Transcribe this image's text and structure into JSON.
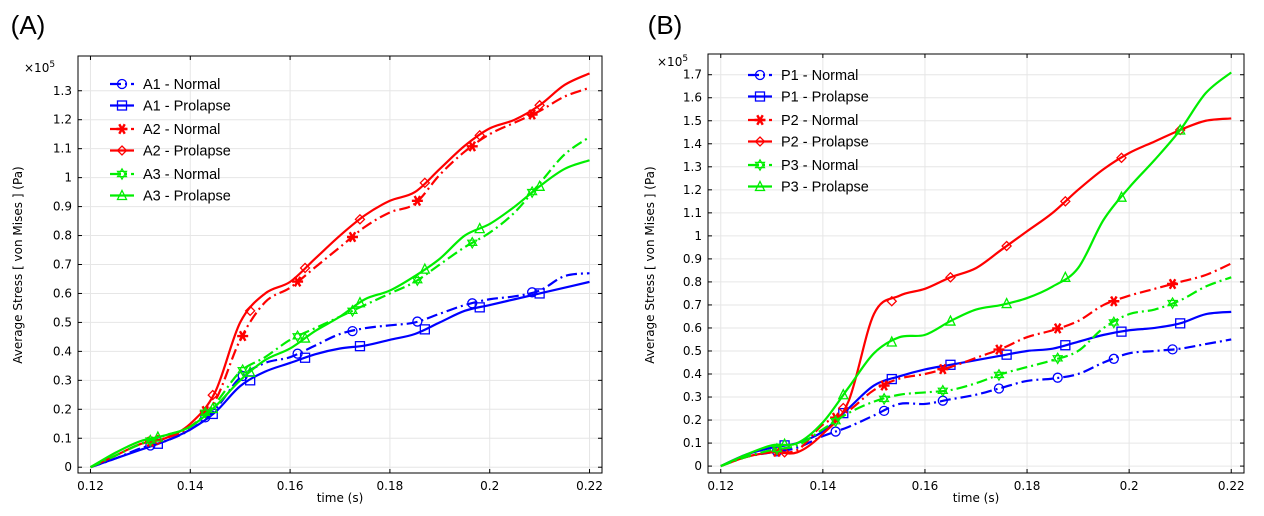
{
  "chart_data": [
    {
      "type": "line",
      "panel_label": "(A)",
      "xlabel": "time (s)",
      "ylabel": "Average Stress [ von Mises ] (Pa)",
      "y_multiplier": "×10",
      "y_exponent": "5",
      "xlim": [
        0.1175,
        0.2225
      ],
      "ylim": [
        -0.02,
        1.42
      ],
      "xticks": [
        0.12,
        0.14,
        0.16,
        0.18,
        0.2,
        0.22
      ],
      "xtick_labels": [
        "0.12",
        "0.14",
        "0.16",
        "0.18",
        "0.2",
        "0.22"
      ],
      "yticks": [
        0,
        0.1,
        0.2,
        0.3,
        0.4,
        0.5,
        0.6,
        0.7,
        0.8,
        0.9,
        1.0,
        1.1,
        1.2,
        1.3
      ],
      "ytick_labels": [
        "0",
        "0.1",
        "0.2",
        "0.3",
        "0.4",
        "0.5",
        "0.6",
        "0.7",
        "0.8",
        "0.9",
        "1",
        "1.1",
        "1.2",
        "1.3"
      ],
      "grid": true,
      "legend_position": "top-left",
      "series": [
        {
          "name": "A1 - Normal",
          "color": "#0000ff",
          "dash": "dashdot",
          "marker": "circle",
          "x": [
            0.12,
            0.125,
            0.13,
            0.135,
            0.14,
            0.145,
            0.15,
            0.155,
            0.16,
            0.165,
            0.17,
            0.175,
            0.18,
            0.185,
            0.19,
            0.195,
            0.2,
            0.205,
            0.21,
            0.215,
            0.22
          ],
          "y": [
            0,
            0.03,
            0.065,
            0.09,
            0.13,
            0.2,
            0.31,
            0.36,
            0.38,
            0.42,
            0.46,
            0.48,
            0.49,
            0.5,
            0.53,
            0.56,
            0.58,
            0.59,
            0.61,
            0.66,
            0.67
          ],
          "marker_x": [
            0.132,
            0.143,
            0.1505,
            0.1615,
            0.1725,
            0.1855,
            0.1965,
            0.2085
          ]
        },
        {
          "name": "A1 - Prolapse",
          "color": "#0000ff",
          "dash": "solid",
          "marker": "square",
          "x": [
            0.12,
            0.125,
            0.13,
            0.135,
            0.14,
            0.145,
            0.15,
            0.155,
            0.16,
            0.165,
            0.17,
            0.175,
            0.18,
            0.185,
            0.19,
            0.195,
            0.2,
            0.205,
            0.21,
            0.215,
            0.22
          ],
          "y": [
            0,
            0.03,
            0.06,
            0.09,
            0.13,
            0.19,
            0.28,
            0.33,
            0.36,
            0.39,
            0.41,
            0.42,
            0.44,
            0.46,
            0.5,
            0.54,
            0.56,
            0.58,
            0.6,
            0.62,
            0.64
          ]
        },
        {
          "name": "A2 - Normal",
          "color": "#ff0000",
          "dash": "dashdot",
          "marker": "asterisk",
          "x": [
            0.12,
            0.125,
            0.13,
            0.135,
            0.14,
            0.145,
            0.15,
            0.155,
            0.16,
            0.165,
            0.17,
            0.175,
            0.18,
            0.185,
            0.19,
            0.195,
            0.2,
            0.205,
            0.21,
            0.215,
            0.22
          ],
          "y": [
            0,
            0.04,
            0.08,
            0.1,
            0.14,
            0.23,
            0.44,
            0.57,
            0.62,
            0.69,
            0.76,
            0.83,
            0.88,
            0.91,
            1.01,
            1.09,
            1.15,
            1.19,
            1.23,
            1.28,
            1.31
          ]
        },
        {
          "name": "A2 - Prolapse",
          "color": "#ff0000",
          "dash": "solid",
          "marker": "diamond",
          "x": [
            0.12,
            0.125,
            0.13,
            0.135,
            0.14,
            0.145,
            0.15,
            0.155,
            0.16,
            0.165,
            0.17,
            0.175,
            0.18,
            0.185,
            0.19,
            0.195,
            0.2,
            0.205,
            0.21,
            0.215,
            0.22
          ],
          "y": [
            0,
            0.04,
            0.08,
            0.1,
            0.15,
            0.26,
            0.5,
            0.6,
            0.64,
            0.72,
            0.8,
            0.87,
            0.92,
            0.95,
            1.03,
            1.11,
            1.17,
            1.2,
            1.25,
            1.32,
            1.36
          ]
        },
        {
          "name": "A3 - Normal",
          "color": "#00ee00",
          "dash": "dashdot",
          "marker": "hexagram",
          "x": [
            0.12,
            0.125,
            0.13,
            0.135,
            0.14,
            0.145,
            0.15,
            0.155,
            0.16,
            0.165,
            0.17,
            0.175,
            0.18,
            0.185,
            0.19,
            0.195,
            0.2,
            0.205,
            0.21,
            0.215,
            0.22
          ],
          "y": [
            0,
            0.04,
            0.08,
            0.11,
            0.14,
            0.22,
            0.33,
            0.38,
            0.44,
            0.48,
            0.52,
            0.56,
            0.6,
            0.64,
            0.7,
            0.76,
            0.81,
            0.88,
            0.98,
            1.08,
            1.14
          ]
        },
        {
          "name": "A3 - Prolapse",
          "color": "#00ee00",
          "dash": "solid",
          "marker": "triangle",
          "x": [
            0.12,
            0.125,
            0.13,
            0.135,
            0.14,
            0.145,
            0.15,
            0.155,
            0.16,
            0.165,
            0.17,
            0.175,
            0.18,
            0.185,
            0.19,
            0.195,
            0.2,
            0.205,
            0.21,
            0.215,
            0.22
          ],
          "y": [
            0,
            0.05,
            0.09,
            0.11,
            0.14,
            0.21,
            0.3,
            0.37,
            0.41,
            0.47,
            0.52,
            0.58,
            0.61,
            0.66,
            0.72,
            0.8,
            0.84,
            0.9,
            0.97,
            1.03,
            1.06
          ]
        }
      ]
    },
    {
      "type": "line",
      "panel_label": "(B)",
      "xlabel": "time (s)",
      "ylabel": "Average Stress [ von Mises ] (Pa)",
      "y_multiplier": "×10",
      "y_exponent": "5",
      "xlim": [
        0.1175,
        0.2225
      ],
      "ylim": [
        -0.03,
        1.79
      ],
      "xticks": [
        0.12,
        0.14,
        0.16,
        0.18,
        0.2,
        0.22
      ],
      "xtick_labels": [
        "0.12",
        "0.14",
        "0.16",
        "0.18",
        "0.2",
        "0.22"
      ],
      "yticks": [
        0,
        0.1,
        0.2,
        0.3,
        0.4,
        0.5,
        0.6,
        0.7,
        0.8,
        0.9,
        1.0,
        1.1,
        1.2,
        1.3,
        1.4,
        1.5,
        1.6,
        1.7
      ],
      "ytick_labels": [
        "0",
        "0.1",
        "0.2",
        "0.3",
        "0.4",
        "0.5",
        "0.6",
        "0.7",
        "0.8",
        "0.9",
        "1",
        "1.1",
        "1.2",
        "1.3",
        "1.4",
        "1.5",
        "1.6",
        "1.7"
      ],
      "grid": true,
      "legend_position": "top-left",
      "series": [
        {
          "name": "P1 - Normal",
          "color": "#0000ff",
          "dash": "dashdot",
          "marker": "circle",
          "x": [
            0.12,
            0.125,
            0.13,
            0.135,
            0.14,
            0.145,
            0.15,
            0.155,
            0.16,
            0.165,
            0.17,
            0.175,
            0.18,
            0.185,
            0.19,
            0.195,
            0.2,
            0.205,
            0.21,
            0.215,
            0.22
          ],
          "y": [
            0,
            0.04,
            0.06,
            0.08,
            0.13,
            0.17,
            0.22,
            0.27,
            0.27,
            0.29,
            0.31,
            0.34,
            0.37,
            0.38,
            0.4,
            0.45,
            0.49,
            0.5,
            0.51,
            0.53,
            0.55
          ],
          "marker_x": [
            0.131,
            0.1425,
            0.152,
            0.1635,
            0.1745,
            0.186,
            0.197,
            0.2085
          ]
        },
        {
          "name": "P1 - Prolapse",
          "color": "#0000ff",
          "dash": "solid",
          "marker": "square",
          "x": [
            0.12,
            0.125,
            0.13,
            0.135,
            0.14,
            0.145,
            0.15,
            0.155,
            0.16,
            0.165,
            0.17,
            0.175,
            0.18,
            0.185,
            0.19,
            0.195,
            0.2,
            0.205,
            0.21,
            0.215,
            0.22
          ],
          "y": [
            0,
            0.05,
            0.08,
            0.1,
            0.15,
            0.25,
            0.35,
            0.39,
            0.42,
            0.44,
            0.46,
            0.48,
            0.5,
            0.51,
            0.54,
            0.57,
            0.59,
            0.6,
            0.62,
            0.66,
            0.67
          ]
        },
        {
          "name": "P2 - Normal",
          "color": "#ff0000",
          "dash": "dashdot",
          "marker": "asterisk",
          "x": [
            0.12,
            0.125,
            0.13,
            0.135,
            0.14,
            0.145,
            0.15,
            0.155,
            0.16,
            0.165,
            0.17,
            0.175,
            0.18,
            0.185,
            0.19,
            0.195,
            0.2,
            0.205,
            0.21,
            0.215,
            0.22
          ],
          "y": [
            0,
            0.04,
            0.06,
            0.07,
            0.18,
            0.24,
            0.33,
            0.38,
            0.4,
            0.43,
            0.47,
            0.51,
            0.56,
            0.59,
            0.63,
            0.7,
            0.74,
            0.77,
            0.8,
            0.83,
            0.88
          ]
        },
        {
          "name": "P2 - Prolapse",
          "color": "#ff0000",
          "dash": "solid",
          "marker": "diamond",
          "x": [
            0.12,
            0.125,
            0.13,
            0.135,
            0.14,
            0.145,
            0.15,
            0.155,
            0.16,
            0.165,
            0.17,
            0.175,
            0.18,
            0.185,
            0.19,
            0.195,
            0.2,
            0.205,
            0.21,
            0.215,
            0.22
          ],
          "y": [
            0,
            0.04,
            0.06,
            0.06,
            0.14,
            0.28,
            0.66,
            0.74,
            0.77,
            0.82,
            0.86,
            0.94,
            1.02,
            1.1,
            1.2,
            1.29,
            1.36,
            1.41,
            1.46,
            1.5,
            1.51
          ]
        },
        {
          "name": "P3 - Normal",
          "color": "#00ee00",
          "dash": "dashdot",
          "marker": "hexagram",
          "x": [
            0.12,
            0.125,
            0.13,
            0.135,
            0.14,
            0.145,
            0.15,
            0.155,
            0.16,
            0.165,
            0.17,
            0.175,
            0.18,
            0.185,
            0.19,
            0.195,
            0.2,
            0.205,
            0.21,
            0.215,
            0.22
          ],
          "y": [
            0,
            0.04,
            0.07,
            0.09,
            0.16,
            0.23,
            0.28,
            0.31,
            0.32,
            0.33,
            0.36,
            0.4,
            0.43,
            0.46,
            0.5,
            0.6,
            0.66,
            0.68,
            0.72,
            0.78,
            0.82
          ]
        },
        {
          "name": "P3 - Prolapse",
          "color": "#00ee00",
          "dash": "solid",
          "marker": "triangle",
          "x": [
            0.12,
            0.125,
            0.13,
            0.135,
            0.14,
            0.145,
            0.15,
            0.155,
            0.16,
            0.165,
            0.17,
            0.175,
            0.18,
            0.185,
            0.19,
            0.195,
            0.2,
            0.205,
            0.21,
            0.215,
            0.22
          ],
          "y": [
            0,
            0.05,
            0.09,
            0.1,
            0.19,
            0.34,
            0.49,
            0.56,
            0.57,
            0.63,
            0.68,
            0.7,
            0.73,
            0.78,
            0.86,
            1.07,
            1.21,
            1.33,
            1.46,
            1.62,
            1.71
          ]
        }
      ]
    }
  ]
}
